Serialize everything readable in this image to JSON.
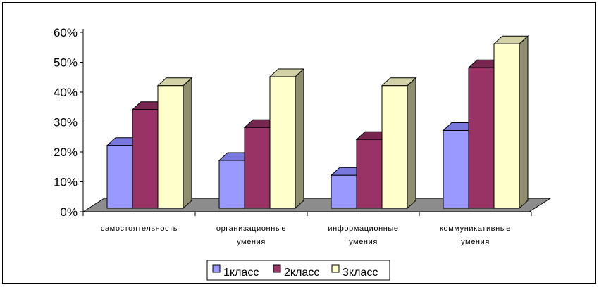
{
  "chart_data": {
    "type": "bar",
    "categories": [
      [
        "самостоятельность"
      ],
      [
        "организационные",
        "умения"
      ],
      [
        "информационные",
        "умения"
      ],
      [
        "коммуникативные",
        "умения"
      ]
    ],
    "series": [
      {
        "name": "1класс",
        "values": [
          0.21,
          0.16,
          0.11,
          0.26
        ]
      },
      {
        "name": "2класс",
        "values": [
          0.33,
          0.27,
          0.23,
          0.47
        ]
      },
      {
        "name": "3класс",
        "values": [
          0.41,
          0.44,
          0.41,
          0.55
        ]
      }
    ],
    "ylim": [
      0,
      0.6
    ],
    "yticks": [
      "0%",
      "10%",
      "20%",
      "30%",
      "40%",
      "50%",
      "60%"
    ],
    "grid": false,
    "legend_position": "bottom",
    "three_d": true,
    "colors": {
      "1класс": {
        "front": "#9999ff",
        "top": "#7777dd",
        "side": "#5c5cb8"
      },
      "2класс": {
        "front": "#993366",
        "top": "#772650",
        "side": "#5e1e3f"
      },
      "3класс": {
        "front": "#ffffcc",
        "top": "#d2d2a6",
        "side": "#8f8f70"
      },
      "floor": "#8c8c8c"
    }
  }
}
